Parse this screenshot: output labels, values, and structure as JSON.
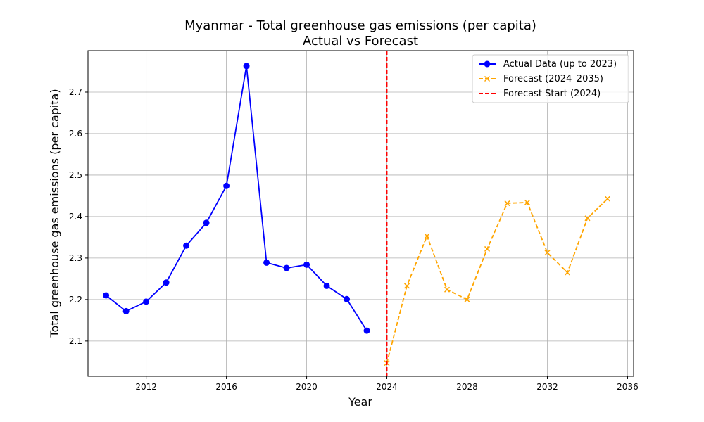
{
  "chart_data": {
    "type": "line",
    "title": "Myanmar - Total greenhouse gas emissions (per capita)",
    "subtitle": "Actual vs Forecast",
    "xlabel": "Year",
    "ylabel": "Total greenhouse gas emissions (per capita)",
    "xlim": [
      2009.1,
      2036.3
    ],
    "ylim": [
      2.015,
      2.8
    ],
    "x_ticks": [
      2012,
      2016,
      2020,
      2024,
      2028,
      2032,
      2036
    ],
    "y_ticks": [
      2.1,
      2.2,
      2.3,
      2.4,
      2.5,
      2.6,
      2.7
    ],
    "grid": true,
    "legend_position": "top-right",
    "series": [
      {
        "name": "Actual Data (up to 2023)",
        "color": "#0000ff",
        "style": "solid",
        "marker": "circle",
        "x": [
          2010,
          2011,
          2012,
          2013,
          2014,
          2015,
          2016,
          2017,
          2018,
          2019,
          2020,
          2021,
          2022,
          2023
        ],
        "values": [
          2.21,
          2.172,
          2.195,
          2.241,
          2.33,
          2.385,
          2.474,
          2.763,
          2.289,
          2.276,
          2.284,
          2.233,
          2.201,
          2.125
        ]
      },
      {
        "name": "Forecast (2024–2035)",
        "color": "#ffa500",
        "style": "dashed",
        "marker": "x",
        "x": [
          2024,
          2025,
          2026,
          2027,
          2028,
          2029,
          2030,
          2031,
          2032,
          2033,
          2034,
          2035
        ],
        "values": [
          2.047,
          2.233,
          2.353,
          2.224,
          2.2,
          2.322,
          2.432,
          2.434,
          2.313,
          2.265,
          2.396,
          2.443
        ]
      }
    ],
    "vertical_line": {
      "name": "Forecast Start (2024)",
      "x": 2024,
      "color": "#ff0000",
      "style": "dashed"
    }
  }
}
